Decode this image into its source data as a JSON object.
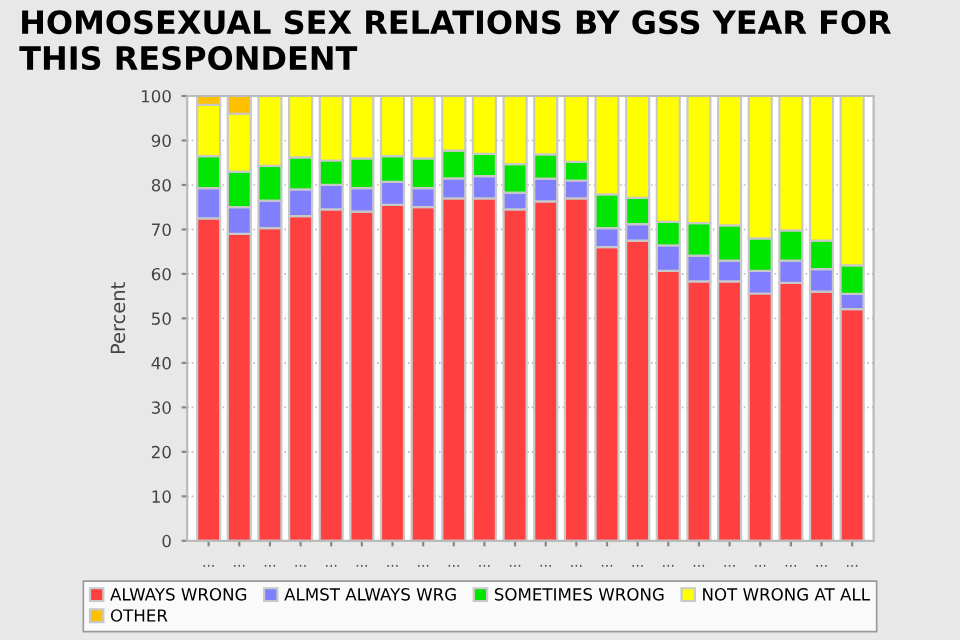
{
  "chart_data": {
    "type": "bar",
    "stacked": true,
    "title": "HOMOSEXUAL SEX RELATIONS BY GSS YEAR FOR THIS RESPONDENT",
    "ylabel": "Percent",
    "categories": [
      "...",
      "...",
      "...",
      "...",
      "...",
      "...",
      "...",
      "...",
      "...",
      "...",
      "...",
      "...",
      "...",
      "...",
      "...",
      "...",
      "...",
      "...",
      "...",
      "...",
      "...",
      "..."
    ],
    "series": [
      {
        "name": "ALWAYS WRONG",
        "color": "#ff4040",
        "values": [
          72.5,
          69,
          70.3,
          73,
          74.5,
          74,
          75.5,
          75,
          77,
          77,
          74.5,
          76.3,
          77,
          66,
          67.5,
          60.7,
          58.3,
          58.3,
          55.6,
          58,
          56,
          52.1
        ]
      },
      {
        "name": "ALMST ALWAYS WRG",
        "color": "#8080ff",
        "values": [
          6.8,
          6,
          6.2,
          6,
          5.5,
          5.3,
          5.2,
          4.3,
          4.5,
          5,
          3.8,
          5.1,
          4,
          4.3,
          3.7,
          5.7,
          5.8,
          4.7,
          5.1,
          5,
          5.1,
          3.4
        ]
      },
      {
        "name": "SOMETIMES WRONG",
        "color": "#00e600",
        "values": [
          7.2,
          8,
          7.8,
          7.2,
          5.5,
          6.7,
          5.8,
          6.7,
          6.2,
          5,
          6.4,
          5.5,
          4.2,
          7.6,
          5.9,
          5.3,
          7.3,
          7.9,
          7.3,
          6.8,
          6.4,
          6.4
        ]
      },
      {
        "name": "NOT WRONG AT ALL",
        "color": "#ffff00",
        "values": [
          11.5,
          13,
          15.7,
          13.8,
          14.5,
          14,
          13.5,
          14,
          12.3,
          13,
          15.3,
          13.1,
          14.8,
          22.1,
          22.9,
          28.3,
          28.6,
          29.1,
          32,
          30.2,
          32.5,
          38.1
        ]
      },
      {
        "name": "OTHER",
        "color": "#ffc000",
        "values": [
          2,
          4,
          0,
          0,
          0,
          0,
          0,
          0,
          0,
          0,
          0,
          0,
          0,
          0,
          0,
          0,
          0,
          0,
          0,
          0,
          0,
          0
        ]
      }
    ],
    "ylim": [
      0,
      100
    ],
    "yticks": [
      0,
      10,
      20,
      30,
      40,
      50,
      60,
      70,
      80,
      90,
      100
    ],
    "grid": "y",
    "legend": "bottom"
  }
}
